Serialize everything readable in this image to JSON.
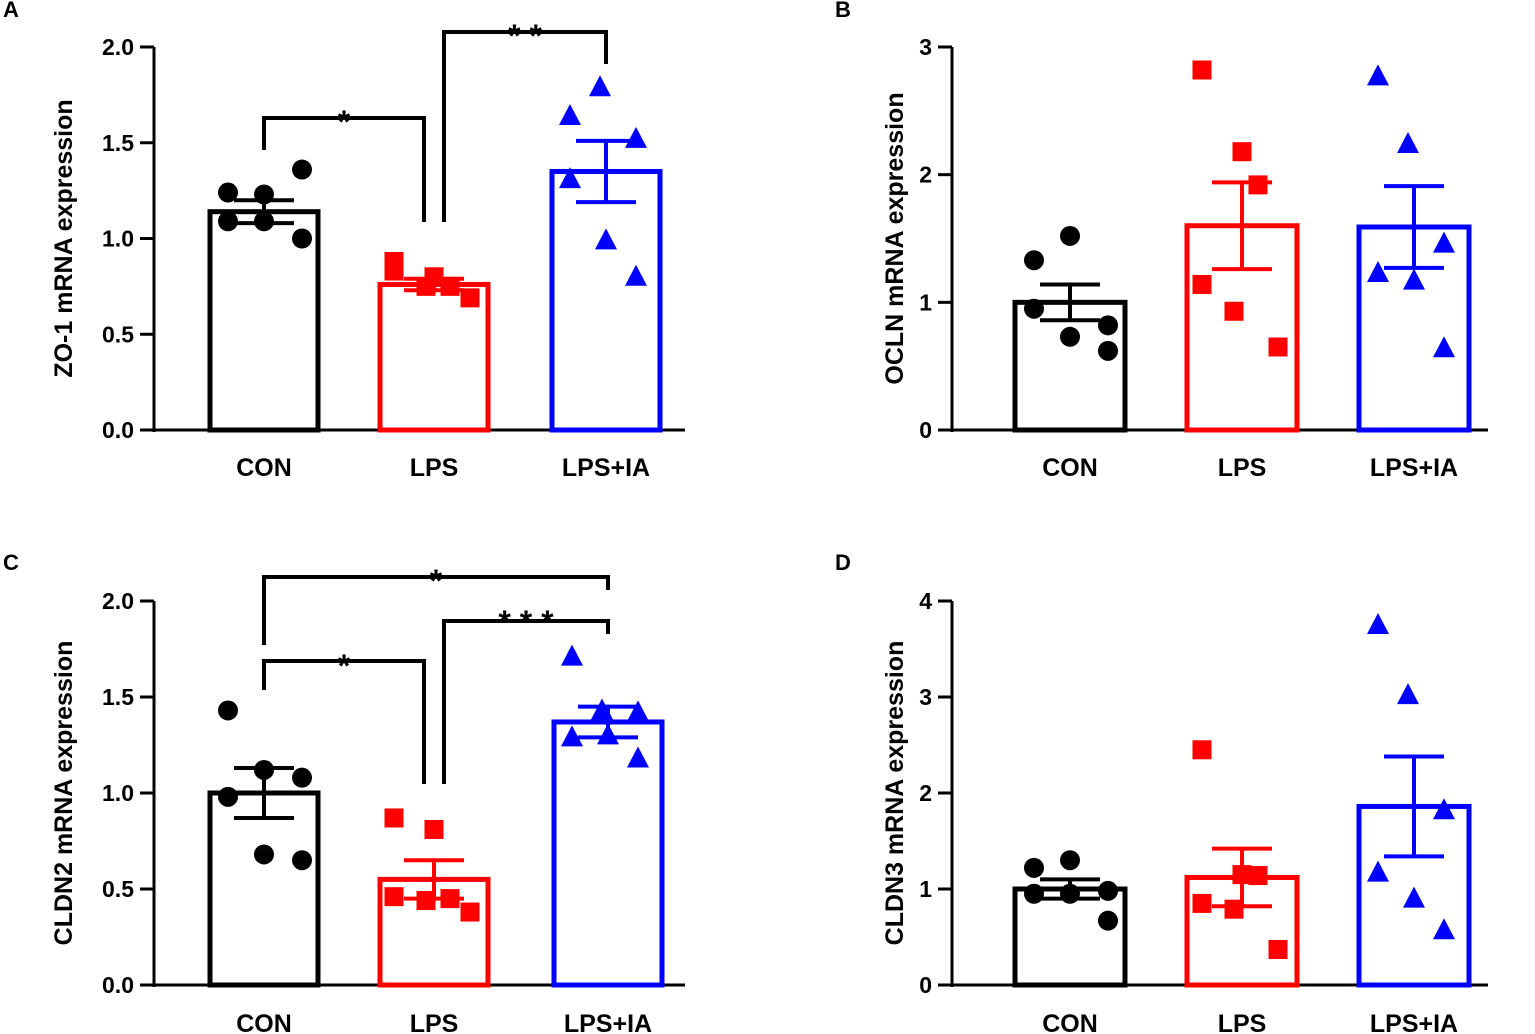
{
  "figure": {
    "group_colors": [
      "#000000",
      "#ff0000",
      "#0000ff"
    ],
    "marker_shapes": [
      "circle",
      "square",
      "triangle"
    ]
  },
  "chart_data": [
    {
      "panel": "A",
      "type": "bar",
      "ylabel": "ZO-1 mRNA expression",
      "categories": [
        "CON",
        "LPS",
        "LPS+IA"
      ],
      "ylim": [
        0,
        2.0
      ],
      "yticks": [
        0.0,
        0.5,
        1.0,
        1.5,
        2.0
      ],
      "ytick_labels": [
        "0.0",
        "0.5",
        "1.0",
        "1.5",
        "2.0"
      ],
      "means": [
        1.14,
        0.76,
        1.35
      ],
      "sem": [
        0.06,
        0.03,
        0.16
      ],
      "points": [
        [
          1.24,
          1.23,
          1.36,
          1.09,
          1.09,
          1.0
        ],
        [
          0.83,
          0.8,
          0.75,
          0.88,
          0.75,
          0.69
        ],
        [
          1.64,
          1.79,
          1.52,
          1.31,
          0.99,
          0.8
        ]
      ],
      "significance": [
        {
          "from": 0,
          "to": 1,
          "label": "*"
        },
        {
          "from": 1,
          "to": 2,
          "label": "* *"
        }
      ]
    },
    {
      "panel": "B",
      "type": "bar",
      "ylabel": "OCLN mRNA expression",
      "categories": [
        "CON",
        "LPS",
        "LPS+IA"
      ],
      "ylim": [
        0,
        3
      ],
      "yticks": [
        0,
        1,
        2,
        3
      ],
      "ytick_labels": [
        "0",
        "1",
        "2",
        "3"
      ],
      "means": [
        1.0,
        1.6,
        1.59
      ],
      "sem": [
        0.14,
        0.34,
        0.32
      ],
      "points": [
        [
          1.33,
          1.52,
          0.82,
          0.95,
          0.73,
          0.62
        ],
        [
          2.82,
          2.18,
          1.92,
          1.14,
          0.93,
          0.65
        ],
        [
          2.77,
          2.24,
          1.46,
          1.23,
          1.17,
          0.64
        ]
      ],
      "significance": []
    },
    {
      "panel": "C",
      "type": "bar",
      "ylabel": "CLDN2 mRNA expression",
      "categories": [
        "CON",
        "LPS",
        "LPS+IA"
      ],
      "ylim": [
        0,
        2.0
      ],
      "yticks": [
        0.0,
        0.5,
        1.0,
        1.5,
        2.0
      ],
      "ytick_labels": [
        "0.0",
        "0.5",
        "1.0",
        "1.5",
        "2.0"
      ],
      "means": [
        1.0,
        0.55,
        1.37
      ],
      "sem": [
        0.13,
        0.1,
        0.08
      ],
      "points": [
        [
          1.43,
          1.12,
          1.08,
          0.98,
          0.68,
          0.65
        ],
        [
          0.87,
          0.81,
          0.45,
          0.46,
          0.44,
          0.38
        ],
        [
          1.71,
          1.43,
          1.42,
          1.29,
          1.3,
          1.18
        ]
      ],
      "significance": [
        {
          "from": 0,
          "to": 1,
          "label": "*"
        },
        {
          "from": 1,
          "to": 2,
          "label": "* * *"
        },
        {
          "from": 0,
          "to": 2,
          "label": "*"
        }
      ]
    },
    {
      "panel": "D",
      "type": "bar",
      "ylabel": "CLDN3 mRNA expression",
      "categories": [
        "CON",
        "LPS",
        "LPS+IA"
      ],
      "ylim": [
        0,
        4
      ],
      "yticks": [
        0,
        1,
        2,
        3,
        4
      ],
      "ytick_labels": [
        "0",
        "1",
        "2",
        "3",
        "4"
      ],
      "means": [
        1.0,
        1.12,
        1.86
      ],
      "sem": [
        0.1,
        0.3,
        0.52
      ],
      "points": [
        [
          1.22,
          1.3,
          0.98,
          0.95,
          0.95,
          0.67
        ],
        [
          2.45,
          1.15,
          1.14,
          0.85,
          0.79,
          0.37
        ],
        [
          3.75,
          3.02,
          1.82,
          1.17,
          0.9,
          0.57
        ]
      ],
      "significance": []
    }
  ]
}
